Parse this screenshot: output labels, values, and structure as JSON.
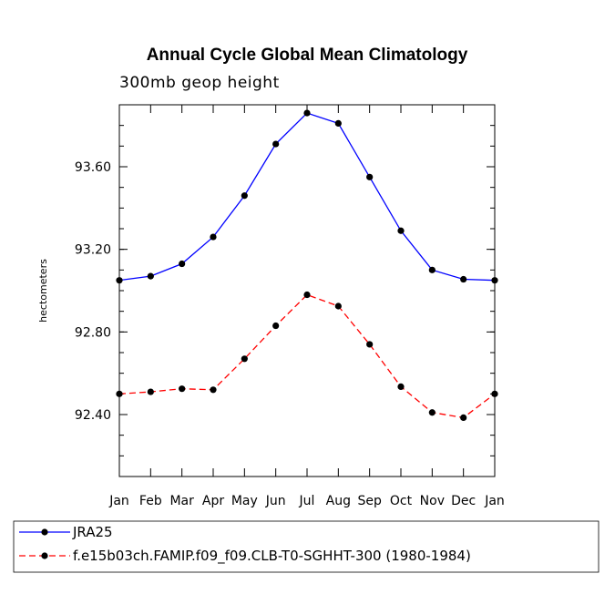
{
  "chart_data": {
    "type": "line",
    "title": "Annual Cycle Global Mean Climatology",
    "subtitle": "300mb geop height",
    "xlabel": "",
    "ylabel": "hectometers",
    "categories": [
      "Jan",
      "Feb",
      "Mar",
      "Apr",
      "May",
      "Jun",
      "Jul",
      "Aug",
      "Sep",
      "Oct",
      "Nov",
      "Dec",
      "Jan"
    ],
    "yticks": [
      92.4,
      92.8,
      93.2,
      93.6
    ],
    "ytick_labels": [
      "92.40",
      "92.80",
      "93.20",
      "93.60"
    ],
    "ylim": [
      92.1,
      93.9
    ],
    "grid": false,
    "legend_position": "bottom",
    "series": [
      {
        "name": "JRA25",
        "color": "#0000ff",
        "dash": "solid",
        "values": [
          93.05,
          93.07,
          93.13,
          93.26,
          93.46,
          93.71,
          93.86,
          93.81,
          93.55,
          93.29,
          93.1,
          93.055,
          93.05
        ]
      },
      {
        "name": "f.e15b03ch.FAMIP.f09_f09.CLB-T0-SGHHT-300 (1980-1984)",
        "color": "#ff0000",
        "dash": "dashed",
        "values": [
          92.5,
          92.51,
          92.525,
          92.52,
          92.67,
          92.83,
          92.98,
          92.925,
          92.74,
          92.535,
          92.41,
          92.385,
          92.5
        ]
      }
    ]
  }
}
